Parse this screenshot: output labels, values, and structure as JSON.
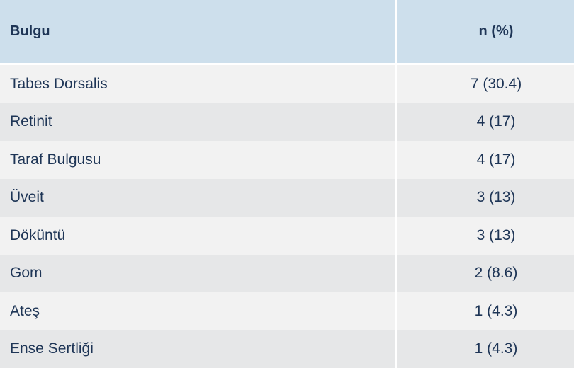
{
  "table": {
    "headers": [
      "Bulgu",
      "n (%)"
    ],
    "rows": [
      [
        "Tabes Dorsalis",
        "7 (30.4)"
      ],
      [
        "Retinit",
        "4 (17)"
      ],
      [
        "Taraf Bulgusu",
        "4 (17)"
      ],
      [
        "Üveit",
        "3 (13)"
      ],
      [
        "Döküntü",
        "3 (13)"
      ],
      [
        "Gom",
        "2 (8.6)"
      ],
      [
        "Ateş",
        "1 (4.3)"
      ],
      [
        "Ense Sertliği",
        "1 (4.3)"
      ]
    ]
  },
  "colors": {
    "header_bg": "#cddfec",
    "row_light": "#f2f2f2",
    "row_dark": "#e6e7e8",
    "text": "#1e3556"
  }
}
